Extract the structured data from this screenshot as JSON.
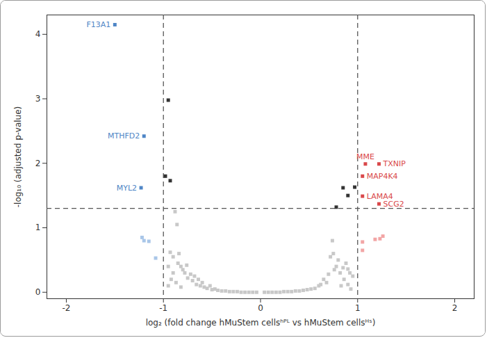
{
  "chart_data": {
    "type": "scatter",
    "xlabel": "log₂ (fold change hMuStem cellsʰᴾᴸ vs hMuStem cellsᴴˢ)",
    "ylabel": "-log₁₀ (adjusted p-value)",
    "xlim": [
      -2.2,
      2.2
    ],
    "ylim": [
      -0.1,
      4.3
    ],
    "xticks": [
      -2,
      -1,
      0,
      1,
      2
    ],
    "yticks": [
      0,
      1,
      2,
      3,
      4
    ],
    "marker": "square",
    "reference_lines": {
      "x": [
        -1,
        1
      ],
      "y": [
        1.3
      ],
      "line_style": "dashed"
    },
    "series": [
      {
        "color": "#c8c8c8",
        "x": [
          -0.95,
          -0.93,
          -0.92,
          -0.9,
          -0.9,
          -0.88,
          -0.87,
          -0.86,
          -0.85,
          -0.84,
          -0.82,
          -0.82,
          -0.8,
          -0.78,
          -0.76,
          -0.75,
          -0.72,
          -0.7,
          -0.68,
          -0.66,
          -0.64,
          -0.62,
          -0.6,
          -0.58,
          -0.55,
          -0.52,
          -0.5,
          -0.47,
          -0.44,
          -0.4,
          -0.36,
          -0.32,
          -0.28,
          -0.24,
          -0.2,
          -0.16,
          -0.12,
          -0.08,
          -0.04,
          -0.95,
          0.04,
          0.08,
          0.12,
          0.16,
          0.2,
          0.24,
          0.28,
          0.32,
          0.36,
          0.4,
          0.44,
          0.48,
          0.52,
          0.56,
          0.6,
          0.62,
          0.65,
          0.68,
          0.7,
          0.72,
          0.74,
          0.75,
          0.76,
          0.78,
          0.8,
          0.82,
          0.83,
          0.85,
          0.86,
          0.88,
          0.9,
          0.9,
          0.92,
          0.93,
          0.95
        ],
        "values": [
          0.1,
          0.62,
          0.2,
          0.55,
          0.3,
          1.25,
          0.15,
          1.05,
          0.45,
          0.6,
          0.4,
          0.08,
          0.35,
          0.3,
          0.42,
          0.22,
          0.28,
          0.18,
          0.25,
          0.12,
          0.2,
          0.1,
          0.15,
          0.08,
          0.06,
          0.1,
          0.04,
          0.05,
          0.03,
          0.02,
          0.02,
          0.01,
          0.01,
          0.01,
          0.0,
          0.0,
          0.0,
          0.0,
          0.0,
          0.4,
          0.0,
          0.0,
          0.0,
          0.0,
          0.0,
          0.01,
          0.01,
          0.01,
          0.02,
          0.02,
          0.03,
          0.04,
          0.05,
          0.06,
          0.1,
          0.12,
          0.2,
          0.15,
          0.28,
          0.55,
          0.8,
          0.6,
          0.35,
          0.4,
          0.5,
          0.3,
          0.1,
          0.38,
          0.2,
          0.45,
          0.36,
          0.12,
          0.3,
          0.05,
          0.25
        ]
      },
      {
        "color": "#333333",
        "x": [
          -0.95,
          -0.98,
          -0.93,
          0.85,
          0.9,
          0.78,
          0.97
        ],
        "values": [
          2.98,
          1.8,
          1.73,
          1.62,
          1.5,
          1.32,
          1.63
        ]
      },
      {
        "color": "#a9c6e8",
        "x": [
          -1.22,
          -1.2,
          -1.15,
          -1.08
        ],
        "values": [
          0.85,
          0.8,
          0.79,
          0.53
        ]
      },
      {
        "color": "#f2a5a5",
        "x": [
          1.05,
          1.05,
          1.18,
          1.23,
          1.26
        ],
        "values": [
          0.78,
          0.65,
          0.82,
          0.83,
          0.87
        ]
      },
      {
        "color": "#4f86c6",
        "x": [
          -1.5,
          -1.2,
          -1.23
        ],
        "values": [
          4.15,
          2.42,
          1.62
        ],
        "labels": [
          "F13A1",
          "MTHFD2",
          "MYL2"
        ]
      },
      {
        "color": "#d9484a",
        "x": [
          1.08,
          1.22,
          1.05,
          1.05,
          1.22
        ],
        "values": [
          1.99,
          1.99,
          1.8,
          1.49,
          1.37
        ],
        "labels": [
          "MME",
          "TXNIP",
          "MAP4K4",
          "LAMA4",
          "SCG2"
        ]
      }
    ]
  }
}
